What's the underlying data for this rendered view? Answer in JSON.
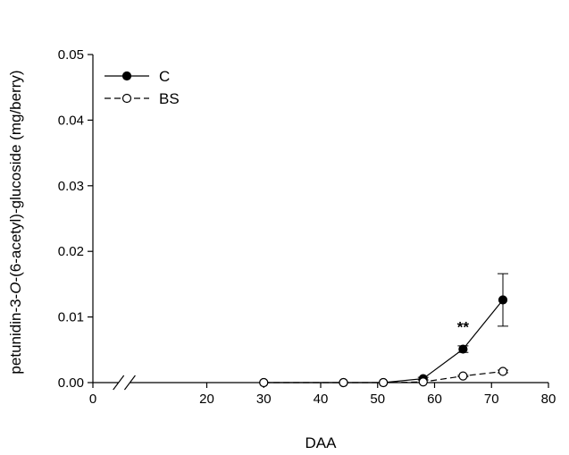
{
  "chart_data": {
    "type": "line",
    "title": "",
    "xlabel": "DAA",
    "ylabel": "petunidin-3-O-(6-acetyl)-glucoside (mg/berry)",
    "ylabel_parts": [
      "petunidin-3-",
      "O",
      "-(6-acetyl)-glucoside (mg/berry)"
    ],
    "xlim": [
      0,
      80
    ],
    "ylim": [
      0,
      0.05
    ],
    "x_ticks": [
      "0",
      "20",
      "30",
      "40",
      "50",
      "60",
      "70",
      "80"
    ],
    "x_tick_values": [
      0,
      20,
      30,
      40,
      50,
      60,
      70,
      80
    ],
    "y_ticks": [
      "0.00",
      "0.01",
      "0.02",
      "0.03",
      "0.04",
      "0.05"
    ],
    "y_tick_values": [
      0,
      0.01,
      0.02,
      0.03,
      0.04,
      0.05
    ],
    "axis_break": "x-axis between 0 and 20",
    "grid": false,
    "legend_position": "top-left",
    "series": [
      {
        "name": "C",
        "marker": "filled-circle",
        "line_style": "solid",
        "x": [
          30,
          44,
          51,
          58,
          65,
          72
        ],
        "y": [
          0,
          0,
          0,
          0.0006,
          0.0051,
          0.0126
        ],
        "error": [
          0,
          0,
          0,
          0.0002,
          0.0005,
          0.004
        ]
      },
      {
        "name": "BS",
        "marker": "open-circle",
        "line_style": "dashed",
        "x": [
          30,
          44,
          51,
          58,
          65,
          72
        ],
        "y": [
          0,
          0,
          0,
          0.0001,
          0.001,
          0.0017
        ],
        "error": [
          0,
          0,
          0,
          0,
          0.0001,
          0.0002
        ]
      }
    ],
    "annotations": [
      {
        "text": "**",
        "x": 65,
        "y": 0.0085
      }
    ]
  }
}
